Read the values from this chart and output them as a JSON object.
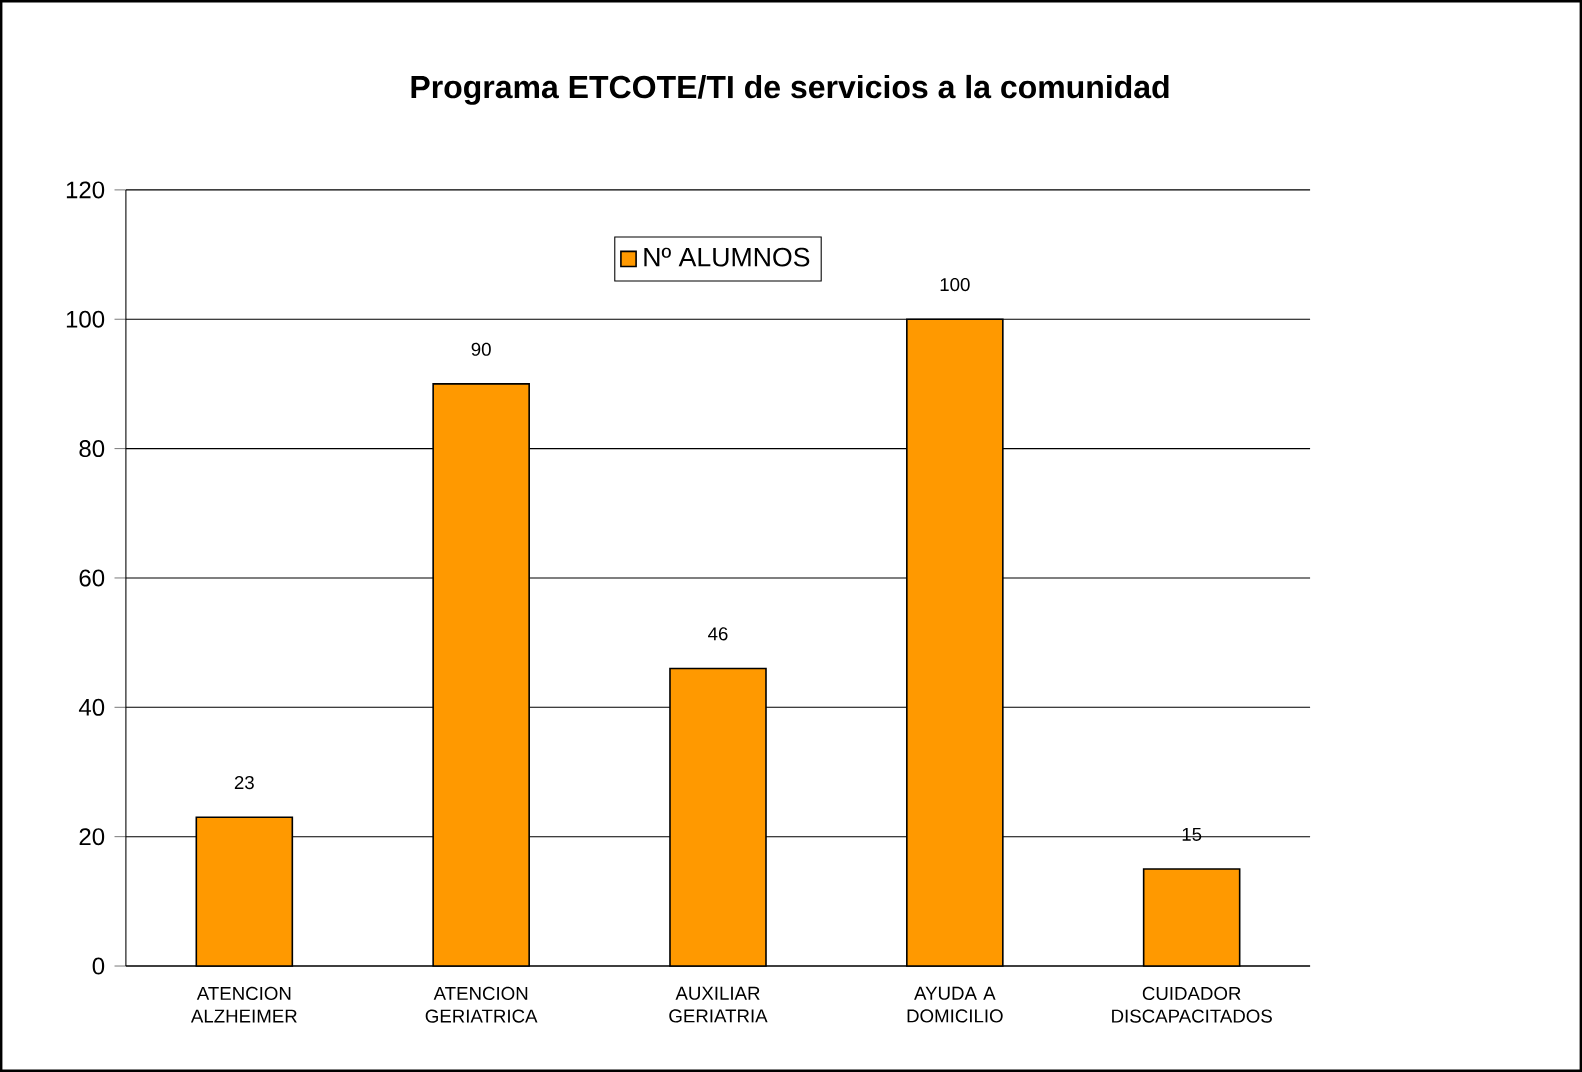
{
  "chart_data": {
    "type": "bar",
    "title": "Programa ETCOTE/TI de servicios a la comunidad",
    "categories": [
      "ATENCION ALZHEIMER",
      "ATENCION GERIATRICA",
      "AUXILIAR GERIATRIA",
      "AYUDA A DOMICILIO",
      "CUIDADOR DISCAPACITADOS"
    ],
    "series": [
      {
        "name": "Nº ALUMNOS",
        "color": "#ff9900",
        "values": [
          23,
          90,
          46,
          100,
          15
        ]
      }
    ],
    "ylim": [
      0,
      120
    ],
    "yticks": [
      0,
      20,
      40,
      60,
      80,
      100,
      120
    ],
    "grid": "y",
    "legend": "top",
    "data_labels": true
  }
}
